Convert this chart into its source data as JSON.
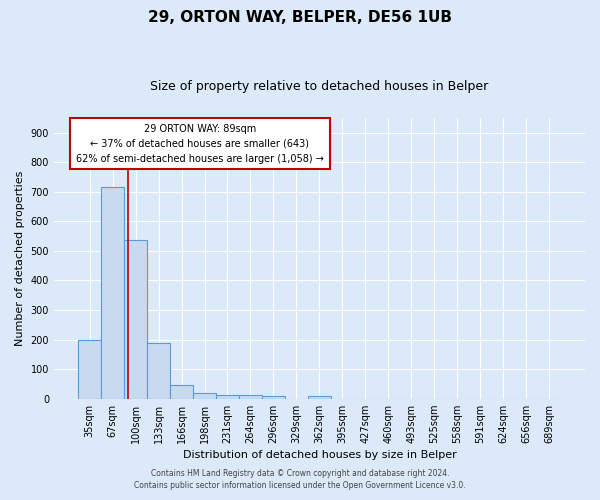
{
  "title1": "29, ORTON WAY, BELPER, DE56 1UB",
  "title2": "Size of property relative to detached houses in Belper",
  "xlabel": "Distribution of detached houses by size in Belper",
  "ylabel": "Number of detached properties",
  "footnote1": "Contains HM Land Registry data © Crown copyright and database right 2024.",
  "footnote2": "Contains public sector information licensed under the Open Government Licence v3.0.",
  "bin_labels": [
    "35sqm",
    "67sqm",
    "100sqm",
    "133sqm",
    "166sqm",
    "198sqm",
    "231sqm",
    "264sqm",
    "296sqm",
    "329sqm",
    "362sqm",
    "395sqm",
    "427sqm",
    "460sqm",
    "493sqm",
    "525sqm",
    "558sqm",
    "591sqm",
    "624sqm",
    "656sqm",
    "689sqm"
  ],
  "bin_values": [
    200,
    715,
    535,
    190,
    45,
    20,
    13,
    12,
    8,
    0,
    8,
    0,
    0,
    0,
    0,
    0,
    0,
    0,
    0,
    0,
    0
  ],
  "bar_color": "#c9d9f0",
  "bar_edge_color": "#5b9bd5",
  "vline_color": "#c00000",
  "annotation_text": "29 ORTON WAY: 89sqm\n← 37% of detached houses are smaller (643)\n62% of semi-detached houses are larger (1,058) →",
  "annotation_box_color": "white",
  "annotation_box_edge": "#c00000",
  "ylim": [
    0,
    950
  ],
  "yticks": [
    0,
    100,
    200,
    300,
    400,
    500,
    600,
    700,
    800,
    900
  ],
  "bg_color": "#dce9f8",
  "grid_color": "#ffffff",
  "title1_fontsize": 11,
  "title2_fontsize": 9,
  "axis_label_fontsize": 8,
  "tick_fontsize": 7,
  "annotation_fontsize": 7,
  "footnote_fontsize": 5.5
}
